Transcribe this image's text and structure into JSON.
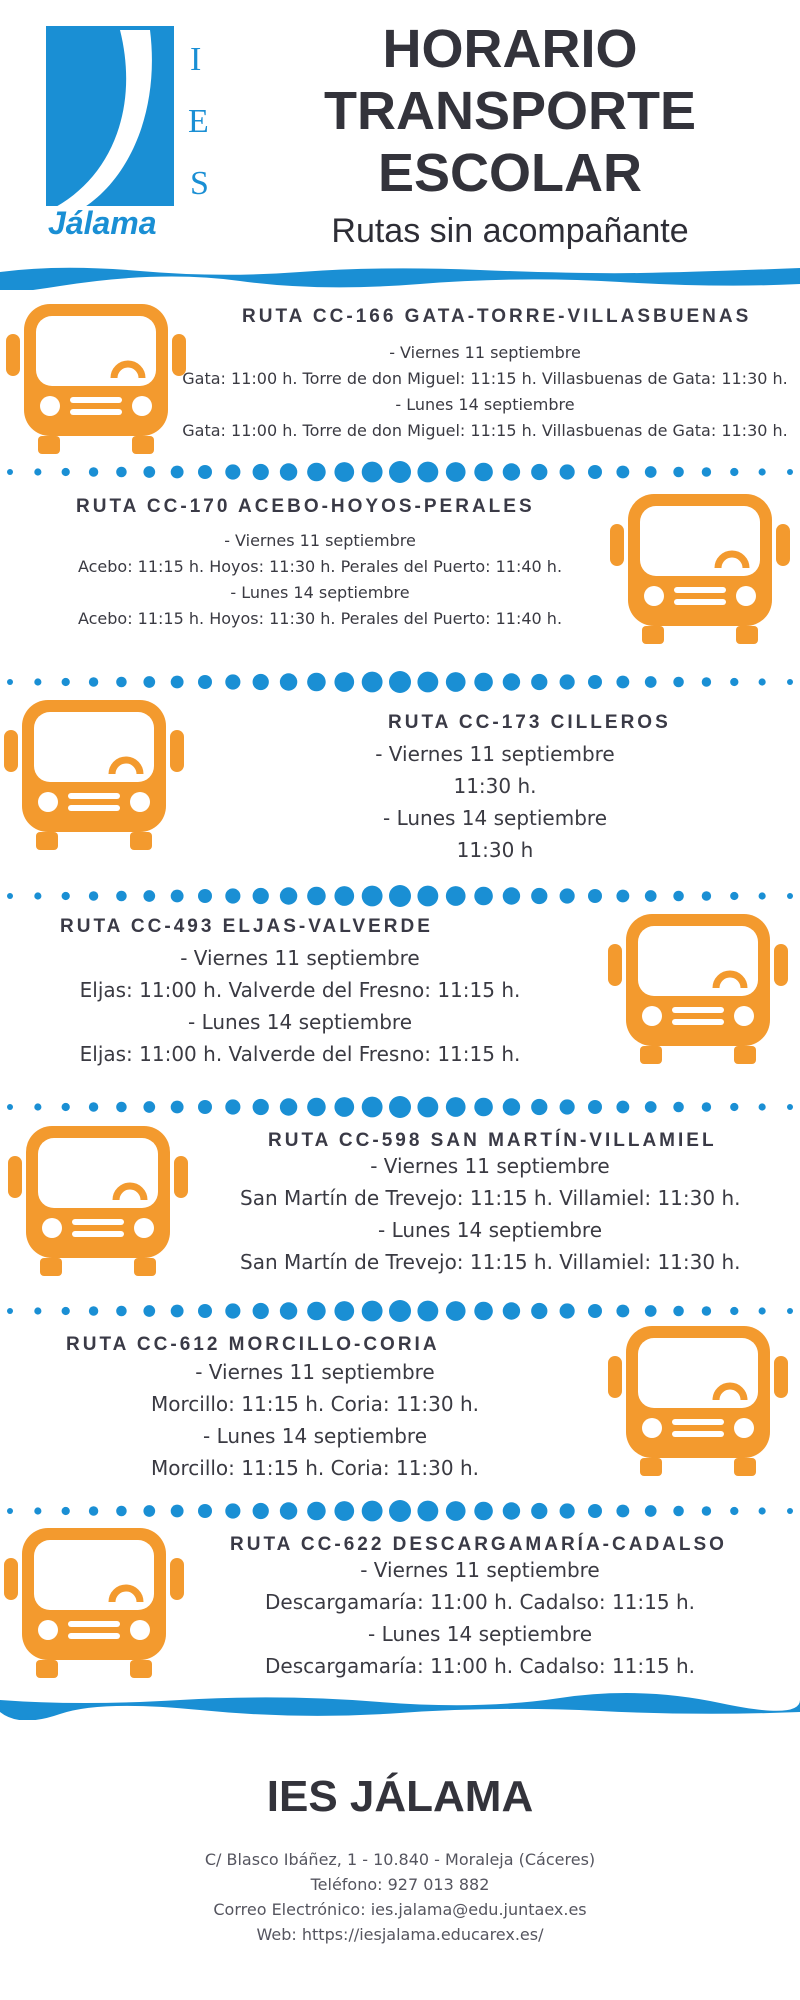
{
  "header": {
    "title_lines": [
      "HORARIO",
      "TRANSPORTE",
      "ESCOLAR"
    ],
    "subtitle": "Rutas sin acompañante",
    "logo": {
      "letters": [
        "I",
        "E",
        "S"
      ],
      "name": "Jálama"
    }
  },
  "routes": [
    {
      "title": "RUTA CC-166 GATA-TORRE-VILLASBUENAS",
      "lines": [
        "- Viernes 11 septiembre",
        "Gata: 11:00 h. Torre de don Miguel: 11:15 h. Villasbuenas de Gata: 11:30 h.",
        "- Lunes 14 septiembre",
        "Gata: 11:00 h. Torre de don Miguel: 11:15 h. Villasbuenas de Gata: 11:30 h."
      ]
    },
    {
      "title": "RUTA CC-170 ACEBO-HOYOS-PERALES",
      "lines": [
        "- Viernes 11 septiembre",
        "Acebo: 11:15 h. Hoyos: 11:30 h. Perales del Puerto: 11:40 h.",
        "- Lunes 14 septiembre",
        "Acebo: 11:15 h. Hoyos: 11:30 h. Perales del Puerto: 11:40 h."
      ]
    },
    {
      "title": "RUTA CC-173 CILLEROS",
      "lines": [
        "- Viernes 11 septiembre",
        "11:30 h.",
        "- Lunes 14 septiembre",
        "11:30 h"
      ]
    },
    {
      "title": "RUTA CC-493 ELJAS-VALVERDE",
      "lines": [
        "- Viernes 11 septiembre",
        "Eljas: 11:00 h. Valverde del Fresno: 11:15 h.",
        "- Lunes 14 septiembre",
        "Eljas: 11:00 h. Valverde del Fresno: 11:15 h."
      ]
    },
    {
      "title": "RUTA CC-598  SAN MARTÍN-VILLAMIEL",
      "lines": [
        "- Viernes 11 septiembre",
        "San Martín de Trevejo: 11:15 h. Villamiel: 11:30 h.",
        "- Lunes 14 septiembre",
        "San Martín de Trevejo: 11:15 h. Villamiel: 11:30 h."
      ]
    },
    {
      "title": "RUTA CC-612  MORCILLO-CORIA",
      "lines": [
        "- Viernes 11 septiembre",
        "Morcillo: 11:15 h. Coria: 11:30 h.",
        "- Lunes 14 septiembre",
        "Morcillo: 11:15 h. Coria: 11:30 h."
      ]
    },
    {
      "title": "RUTA CC-622  DESCARGAMARÍA-CADALSO",
      "lines": [
        "- Viernes 11 septiembre",
        "Descargamaría: 11:00 h. Cadalso: 11:15 h.",
        "- Lunes 14 septiembre",
        "Descargamaría: 11:00 h. Cadalso: 11:15 h."
      ]
    }
  ],
  "footer": {
    "name": "IES JÁLAMA",
    "address": "C/ Blasco Ibáñez, 1 - 10.840 - Moraleja (Cáceres)",
    "phone": "Teléfono: 927 013 882",
    "email": "Correo Electrónico: ies.jalama@edu.juntaex.es",
    "web": "Web: https://iesjalama.educarex.es/"
  },
  "colors": {
    "accent_blue": "#1a8fd4",
    "bus_orange": "#f39a2e",
    "text_dark": "#33333b"
  }
}
